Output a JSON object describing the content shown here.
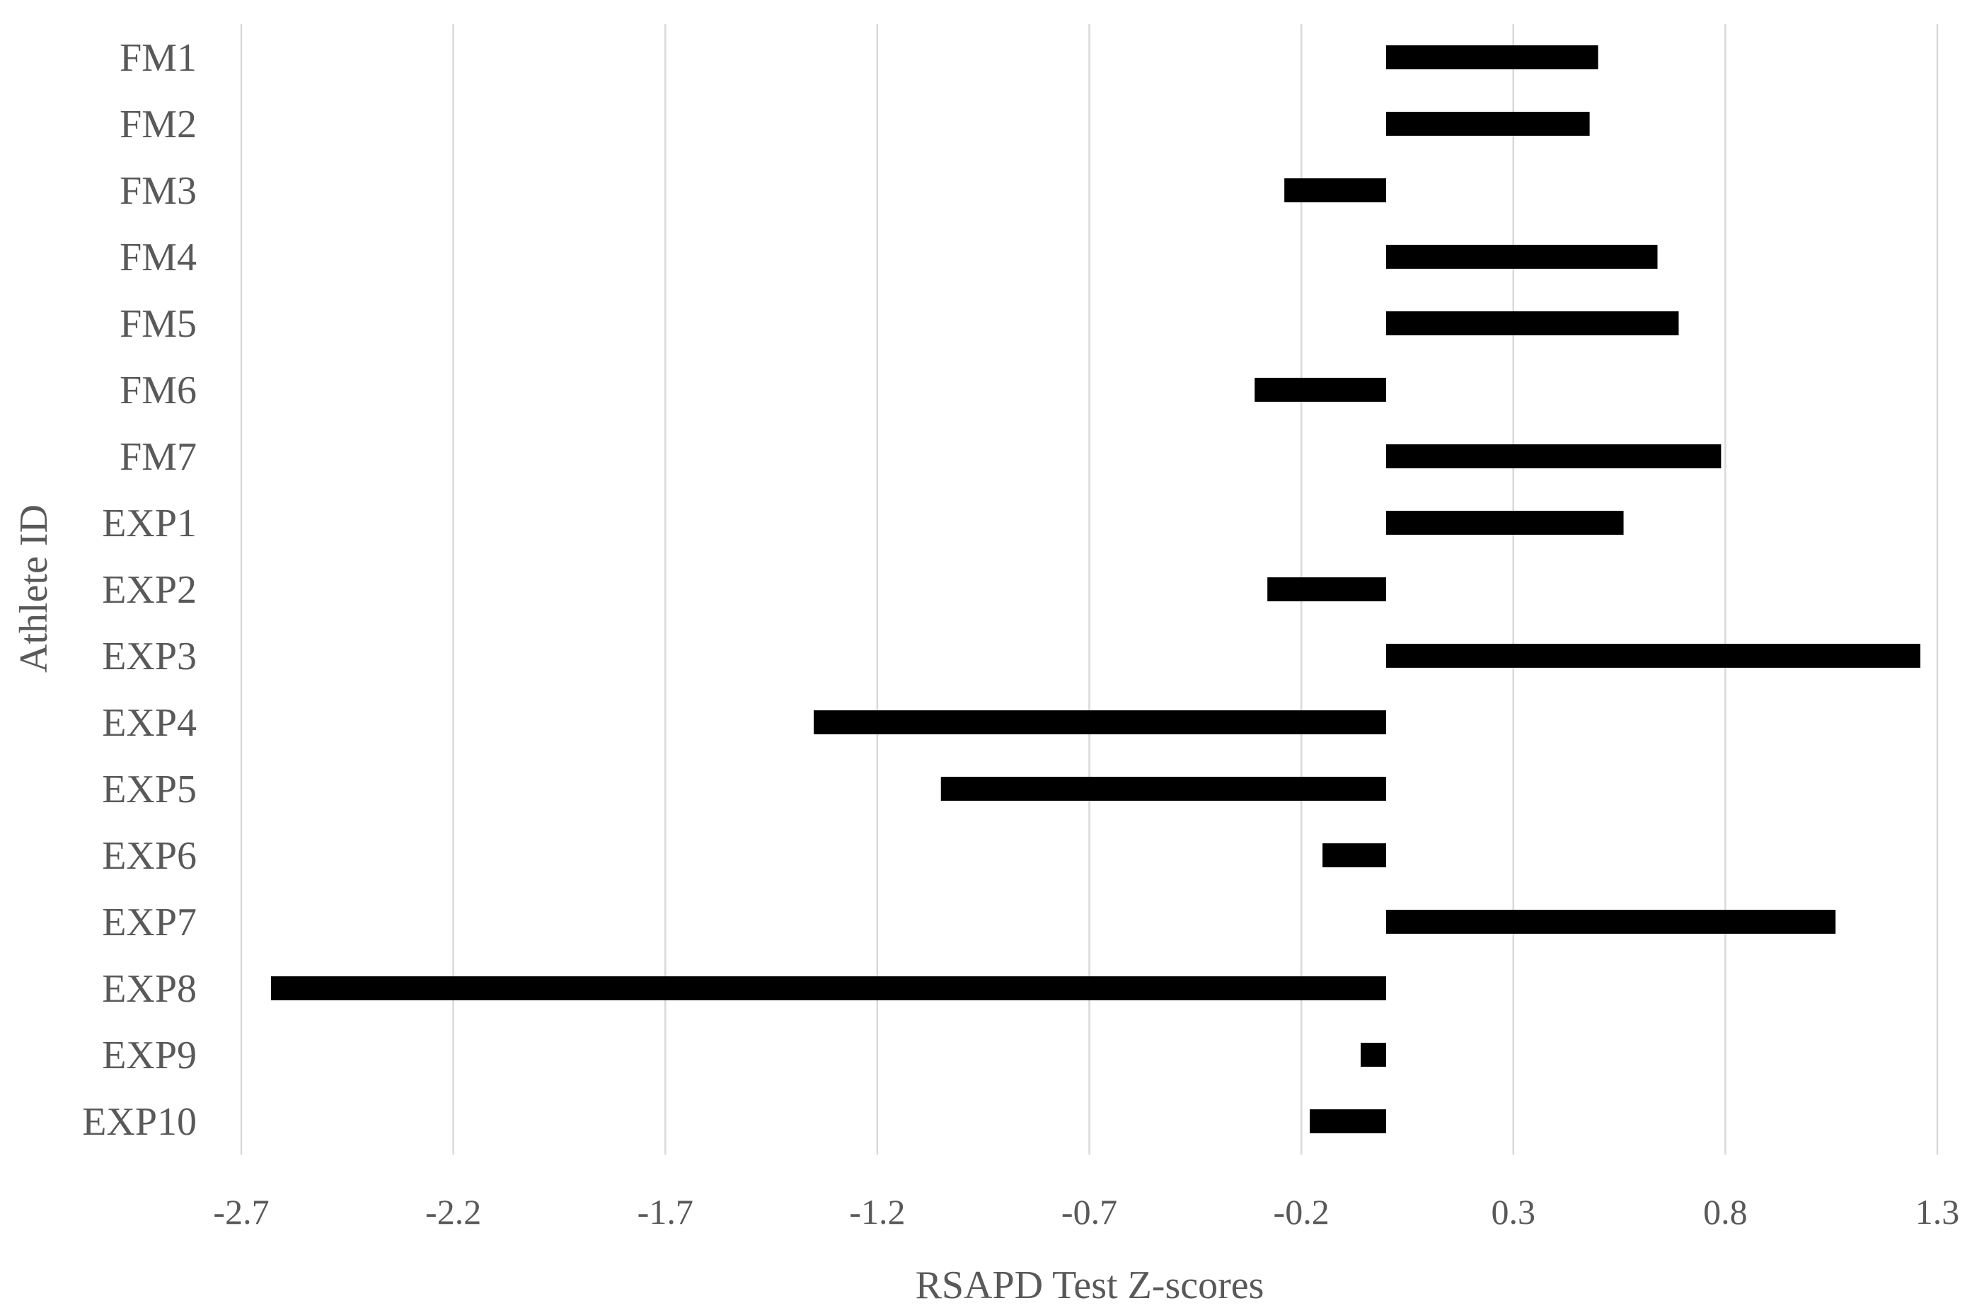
{
  "chart_data": {
    "type": "bar",
    "orientation": "horizontal",
    "xlabel": "RSAPD Test Z-scores",
    "ylabel": "Athlete ID",
    "xlim": [
      -2.7,
      1.3
    ],
    "xticks": [
      "-2.7",
      "-2.2",
      "-1.7",
      "-1.2",
      "-0.7",
      "-0.2",
      "0.3",
      "0.8",
      "1.3"
    ],
    "grid": "vertical",
    "bar_color": "#000000",
    "categories": [
      "FM1",
      "FM2",
      "FM3",
      "FM4",
      "FM5",
      "FM6",
      "FM7",
      "EXP1",
      "EXP2",
      "EXP3",
      "EXP4",
      "EXP5",
      "EXP6",
      "EXP7",
      "EXP8",
      "EXP9",
      "EXP10"
    ],
    "values": [
      0.5,
      0.48,
      -0.24,
      0.64,
      0.69,
      -0.31,
      0.79,
      0.56,
      -0.28,
      1.26,
      -1.35,
      -1.05,
      -0.15,
      1.06,
      -2.63,
      -0.06,
      -0.18
    ]
  }
}
